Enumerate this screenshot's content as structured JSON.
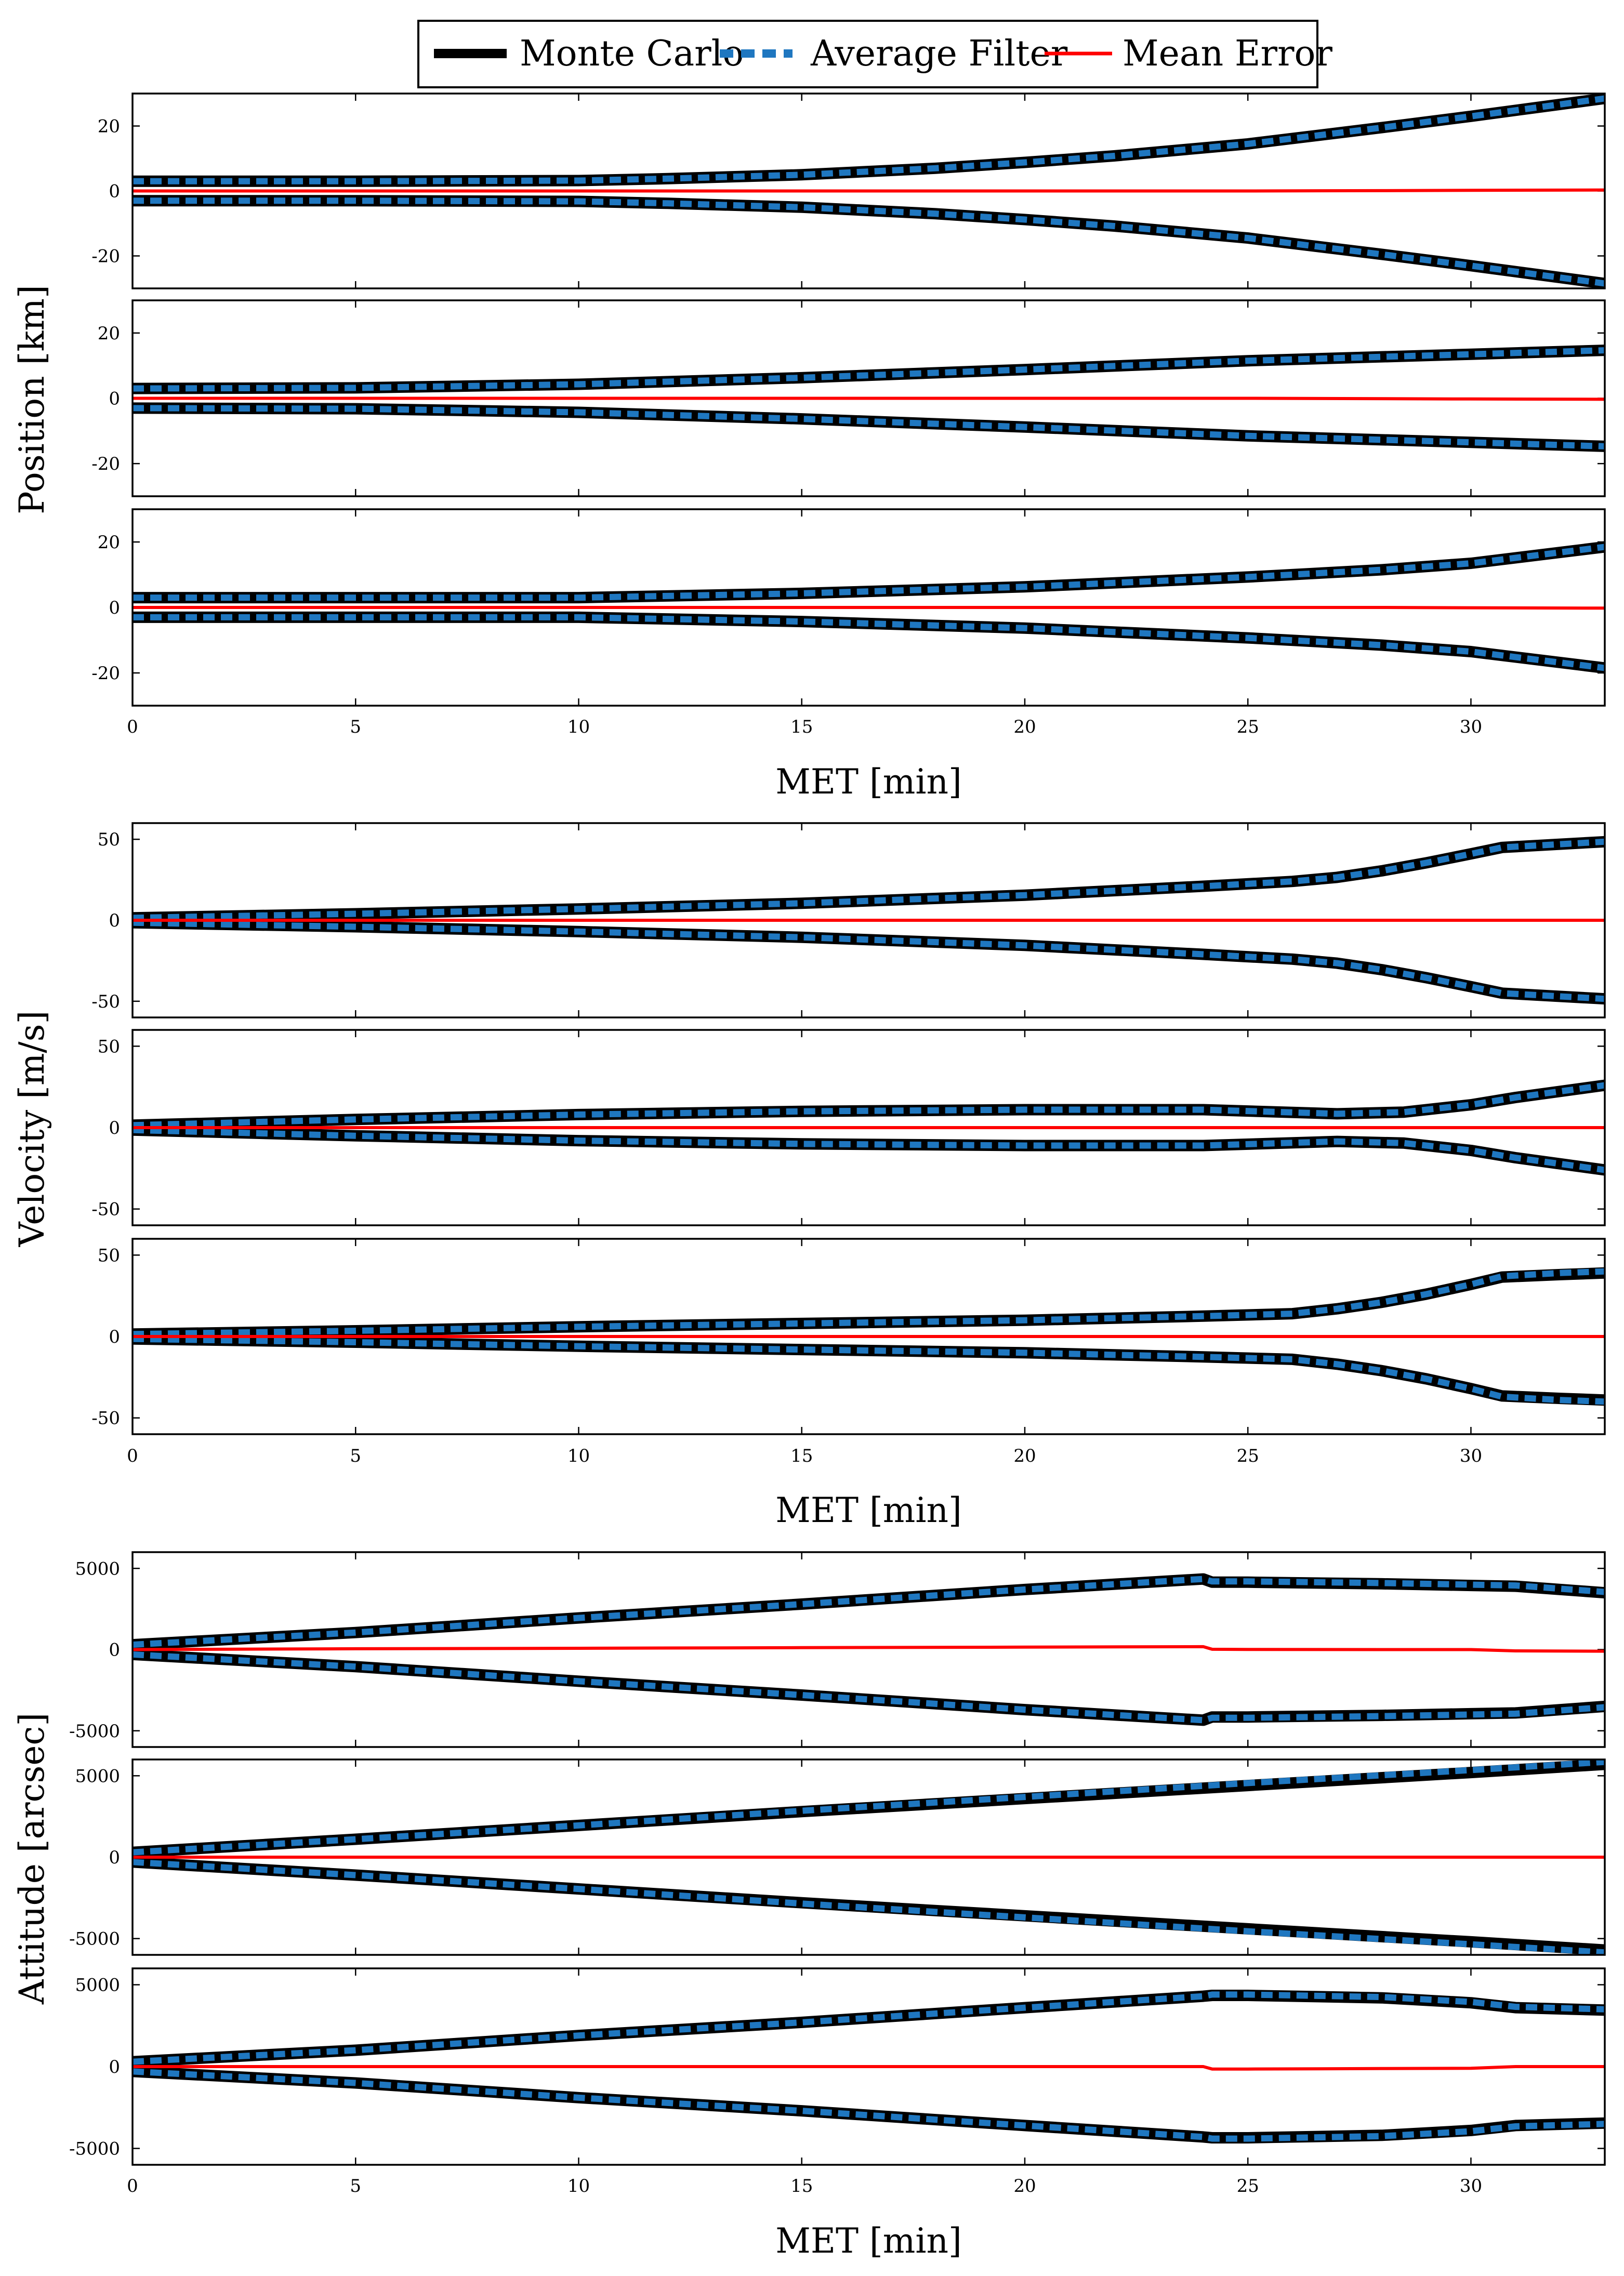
{
  "legend": [
    {
      "label": "Monte Carlo",
      "color": "#000000",
      "style": "solid"
    },
    {
      "label": "Average Filter",
      "color": "#1f77c0",
      "style": "dashed"
    },
    {
      "label": "Mean Error",
      "color": "#ff0000",
      "style": "solid"
    }
  ],
  "chart_data": [
    {
      "type": "line",
      "group": "position",
      "ylabel": "Position [km]",
      "xlabel": "MET [min]",
      "xlim": [
        0,
        33
      ],
      "xticks": [
        0,
        5,
        10,
        15,
        20,
        25,
        30
      ],
      "panels": [
        {
          "name": "position-x",
          "ylim": [
            -30,
            30
          ],
          "yticks": [
            20,
            0,
            -20
          ],
          "ytick_labels": [
            "20",
            "0",
            "-20"
          ],
          "x": [
            0,
            5,
            10,
            12,
            15,
            18,
            20,
            22,
            25,
            28,
            30,
            33
          ],
          "monte_carlo_sigma": [
            3,
            3,
            3.2,
            3.8,
            5,
            7,
            8.8,
            10.8,
            14.5,
            19.5,
            23,
            28.5
          ],
          "average_filter_sigma": [
            3,
            3,
            3.2,
            3.8,
            5,
            7,
            8.8,
            10.8,
            14.5,
            19.5,
            23,
            28.5
          ],
          "mean_error": [
            0,
            0,
            0,
            0,
            0,
            0,
            0,
            0,
            0,
            0.1,
            0.2,
            0.3
          ]
        },
        {
          "name": "position-y",
          "ylim": [
            -30,
            30
          ],
          "yticks": [
            20,
            0,
            -20
          ],
          "ytick_labels": [
            "20",
            "0",
            "-20"
          ],
          "x": [
            0,
            5,
            10,
            15,
            20,
            25,
            30,
            33
          ],
          "monte_carlo_sigma": [
            3,
            3.2,
            4.3,
            6.3,
            8.8,
            11.5,
            13.5,
            14.7
          ],
          "average_filter_sigma": [
            3,
            3.2,
            4.3,
            6.3,
            8.8,
            11.5,
            13.5,
            14.7
          ],
          "mean_error": [
            0,
            0,
            0,
            0,
            0,
            0,
            -0.2,
            -0.3
          ]
        },
        {
          "name": "position-z",
          "ylim": [
            -30,
            30
          ],
          "yticks": [
            20,
            0,
            -20
          ],
          "ytick_labels": [
            "20",
            "0",
            "-20"
          ],
          "x": [
            0,
            5,
            10,
            15,
            20,
            25,
            28,
            30,
            33
          ],
          "monte_carlo_sigma": [
            3,
            3,
            3,
            4.3,
            6.3,
            9.3,
            11.5,
            13.5,
            18.5
          ],
          "average_filter_sigma": [
            3,
            3,
            3,
            4.3,
            6.3,
            9.3,
            11.5,
            13.5,
            18.5
          ],
          "mean_error": [
            0,
            0,
            0,
            0,
            0,
            0,
            0,
            -0.1,
            -0.2
          ]
        }
      ]
    },
    {
      "type": "line",
      "group": "velocity",
      "ylabel": "Velocity [m/s]",
      "xlabel": "MET [min]",
      "xlim": [
        0,
        33
      ],
      "xticks": [
        0,
        5,
        10,
        15,
        20,
        25,
        30
      ],
      "panels": [
        {
          "name": "velocity-x",
          "ylim": [
            -60,
            60
          ],
          "yticks": [
            50,
            0,
            -50
          ],
          "ytick_labels": [
            "50",
            "0",
            "-50"
          ],
          "x": [
            0,
            5,
            10,
            15,
            20,
            24,
            26,
            27,
            28,
            29,
            30,
            30.7,
            33
          ],
          "monte_carlo_sigma": [
            1.5,
            4,
            7,
            10.5,
            15.5,
            21,
            24,
            26.5,
            30.5,
            35.5,
            41,
            45,
            48.5
          ],
          "average_filter_sigma": [
            1.5,
            4,
            7,
            10.5,
            15.5,
            21,
            24,
            26.5,
            30.5,
            35.5,
            41,
            45,
            48.5
          ],
          "mean_error": [
            0,
            0,
            0,
            0,
            0,
            0,
            0,
            0,
            0,
            0,
            0,
            0,
            0
          ]
        },
        {
          "name": "velocity-y",
          "ylim": [
            -60,
            60
          ],
          "yticks": [
            50,
            0,
            -50
          ],
          "ytick_labels": [
            "50",
            "0",
            "-50"
          ],
          "x": [
            0,
            5,
            10,
            15,
            20,
            24,
            27,
            28.5,
            30,
            31,
            33
          ],
          "monte_carlo_sigma": [
            1.5,
            5,
            8,
            10,
            11,
            11,
            8.5,
            9.5,
            14,
            18.5,
            26
          ],
          "average_filter_sigma": [
            1.5,
            5,
            8,
            10,
            11,
            11,
            8.5,
            9.5,
            14,
            18.5,
            26
          ],
          "mean_error": [
            0,
            0,
            0,
            0,
            0,
            0,
            0,
            0,
            0,
            0,
            0
          ]
        },
        {
          "name": "velocity-z",
          "ylim": [
            -60,
            60
          ],
          "yticks": [
            50,
            0,
            -50
          ],
          "ytick_labels": [
            "50",
            "0",
            "-50"
          ],
          "x": [
            0,
            5,
            10,
            15,
            20,
            24,
            26,
            27,
            28,
            29,
            30,
            30.7,
            32,
            33
          ],
          "monte_carlo_sigma": [
            1.5,
            3.5,
            6,
            8,
            10,
            12.5,
            14,
            17,
            21,
            26,
            32,
            36.5,
            38,
            39
          ],
          "average_filter_sigma": [
            1.5,
            3.5,
            6,
            8,
            10,
            12.5,
            14,
            17,
            21,
            26,
            32,
            37,
            39,
            40
          ],
          "mean_error": [
            0,
            0,
            0,
            0,
            0,
            0,
            0,
            0,
            0,
            0,
            0,
            0,
            0,
            0
          ]
        }
      ]
    },
    {
      "type": "line",
      "group": "attitude",
      "ylabel": "Attitude [arcsec]",
      "xlabel": "MET [min]",
      "xlim": [
        0,
        33
      ],
      "xticks": [
        0,
        5,
        10,
        15,
        20,
        25,
        30
      ],
      "panels": [
        {
          "name": "attitude-x",
          "ylim": [
            -6000,
            6000
          ],
          "yticks": [
            5000,
            0,
            -5000
          ],
          "ytick_labels": [
            "5000",
            "0",
            "-5000"
          ],
          "x": [
            0,
            5,
            10,
            15,
            20,
            24,
            24.2,
            25,
            28,
            30,
            31,
            33
          ],
          "monte_carlo_sigma": [
            300,
            1050,
            1950,
            2800,
            3700,
            4350,
            4150,
            4150,
            4050,
            3950,
            3900,
            3500
          ],
          "average_filter_sigma": [
            300,
            1050,
            1950,
            2800,
            3700,
            4350,
            4200,
            4200,
            4100,
            4000,
            3950,
            3550
          ],
          "mean_error": [
            0,
            50,
            80,
            120,
            150,
            180,
            20,
            10,
            0,
            0,
            -80,
            -100
          ]
        },
        {
          "name": "attitude-y",
          "ylim": [
            -6000,
            6000
          ],
          "yticks": [
            5000,
            0,
            -5000
          ],
          "ytick_labels": [
            "5000",
            "0",
            "-5000"
          ],
          "x": [
            0,
            5,
            10,
            15,
            20,
            25,
            30,
            33
          ],
          "monte_carlo_sigma": [
            300,
            1100,
            1950,
            2800,
            3600,
            4400,
            5200,
            5700
          ],
          "average_filter_sigma": [
            300,
            1100,
            1950,
            2850,
            3700,
            4550,
            5350,
            5850
          ],
          "mean_error": [
            0,
            0,
            0,
            0,
            0,
            0,
            0,
            0
          ]
        },
        {
          "name": "attitude-z",
          "ylim": [
            -6000,
            6000
          ],
          "yticks": [
            5000,
            0,
            -5000
          ],
          "ytick_labels": [
            "5000",
            "0",
            "-5000"
          ],
          "x": [
            0,
            5,
            10,
            15,
            20,
            24,
            24.2,
            25,
            28,
            30,
            31,
            33
          ],
          "monte_carlo_sigma": [
            300,
            1000,
            1900,
            2700,
            3600,
            4300,
            4350,
            4350,
            4200,
            3900,
            3600,
            3450
          ],
          "average_filter_sigma": [
            300,
            1000,
            1900,
            2700,
            3600,
            4300,
            4400,
            4400,
            4250,
            3950,
            3650,
            3500
          ],
          "mean_error": [
            0,
            0,
            0,
            0,
            0,
            0,
            -150,
            -150,
            -120,
            -100,
            0,
            0
          ]
        }
      ]
    }
  ]
}
